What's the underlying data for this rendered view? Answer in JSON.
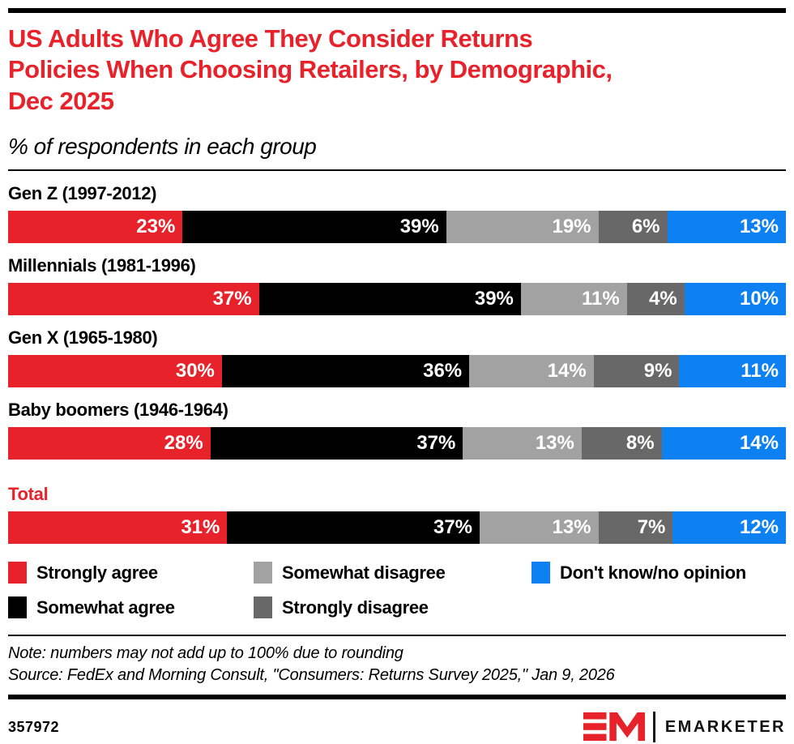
{
  "page": {
    "background": "#ffffff",
    "accent_red": "#e8222a"
  },
  "header": {
    "title": "US Adults Who Agree They Consider Returns Policies When Choosing Retailers, by Demographic, Dec 2025",
    "subtitle": "% of respondents in each group"
  },
  "chart_data": {
    "type": "bar",
    "orientation": "horizontal",
    "stacked": true,
    "value_suffix": "%",
    "xlim": [
      0,
      100
    ],
    "grid": false,
    "legend_position": "bottom",
    "title": "US Adults Who Agree They Consider Returns Policies When Choosing Retailers, by Demographic, Dec 2025",
    "xlabel": "",
    "ylabel": "% of respondents in each group",
    "categories": [
      {
        "label": "Gen Z (1997-2012)"
      },
      {
        "label": "Millennials (1981-1996)"
      },
      {
        "label": "Gen X (1965-1980)"
      },
      {
        "label": "Baby boomers (1946-1964)"
      },
      {
        "label": "Total",
        "emphasis": true
      }
    ],
    "series": [
      {
        "name": "Strongly agree",
        "color": "#e8222a",
        "values": [
          23,
          37,
          30,
          28,
          31
        ]
      },
      {
        "name": "Somewhat agree",
        "color": "#000000",
        "values": [
          39,
          39,
          36,
          37,
          37
        ]
      },
      {
        "name": "Somewhat disagree",
        "color": "#a2a2a2",
        "values": [
          19,
          11,
          14,
          13,
          13
        ]
      },
      {
        "name": "Strongly disagree",
        "color": "#686868",
        "values": [
          6,
          4,
          9,
          8,
          7
        ]
      },
      {
        "name": "Don't know/no opinion",
        "color": "#0d80f2",
        "values": [
          13,
          10,
          11,
          14,
          12
        ]
      }
    ],
    "legend_display_order": [
      0,
      2,
      4,
      1,
      3
    ]
  },
  "footer": {
    "note": "Note: numbers may not add up to 100% due to rounding",
    "source": "Source: FedEx and Morning Consult, \"Consumers: Returns Survey 2025,\" Jan 9, 2026",
    "chart_id": "357972",
    "brand": "EMARKETER"
  }
}
